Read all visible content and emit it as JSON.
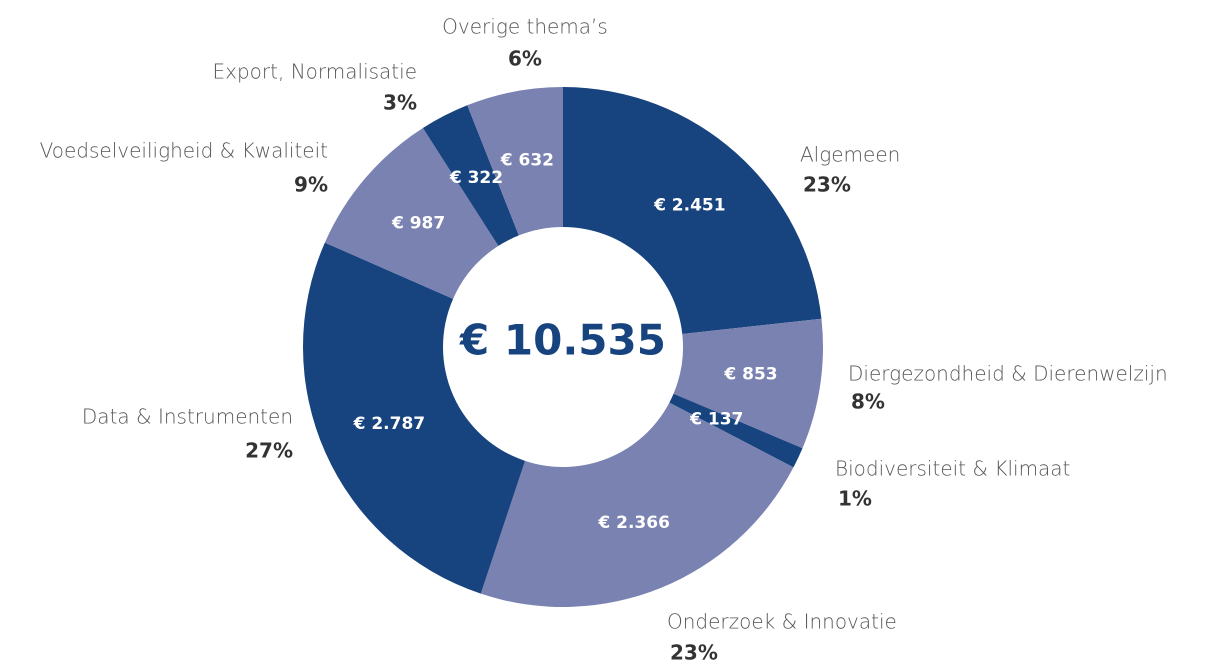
{
  "chart_data": {
    "type": "donut",
    "center_label": "€ 10.535",
    "categories": [
      "Algemeen",
      "Diergezondheid & Dierenwelzijn",
      "Biodiversiteit & Klimaat",
      "Onderzoek & Innovatie",
      "Data & Instrumenten",
      "Voedselveiligheid & Kwaliteit",
      "Export, Normalisatie",
      "Overige thema’s"
    ],
    "values": [
      2451,
      853,
      137,
      2366,
      2787,
      987,
      322,
      632
    ],
    "value_labels": [
      "€ 2.451",
      "€ 853",
      "€ 137",
      "€ 2.366",
      "€ 2.787",
      "€ 987",
      "€ 322",
      "€ 632"
    ],
    "percent_labels": [
      "23%",
      "8%",
      "1%",
      "23%",
      "27%",
      "9%",
      "3%",
      "6%"
    ],
    "colors": [
      "#17437f",
      "#7a82b2",
      "#17437f",
      "#7a82b2",
      "#17437f",
      "#7a82b2",
      "#17437f",
      "#7a82b2"
    ]
  }
}
